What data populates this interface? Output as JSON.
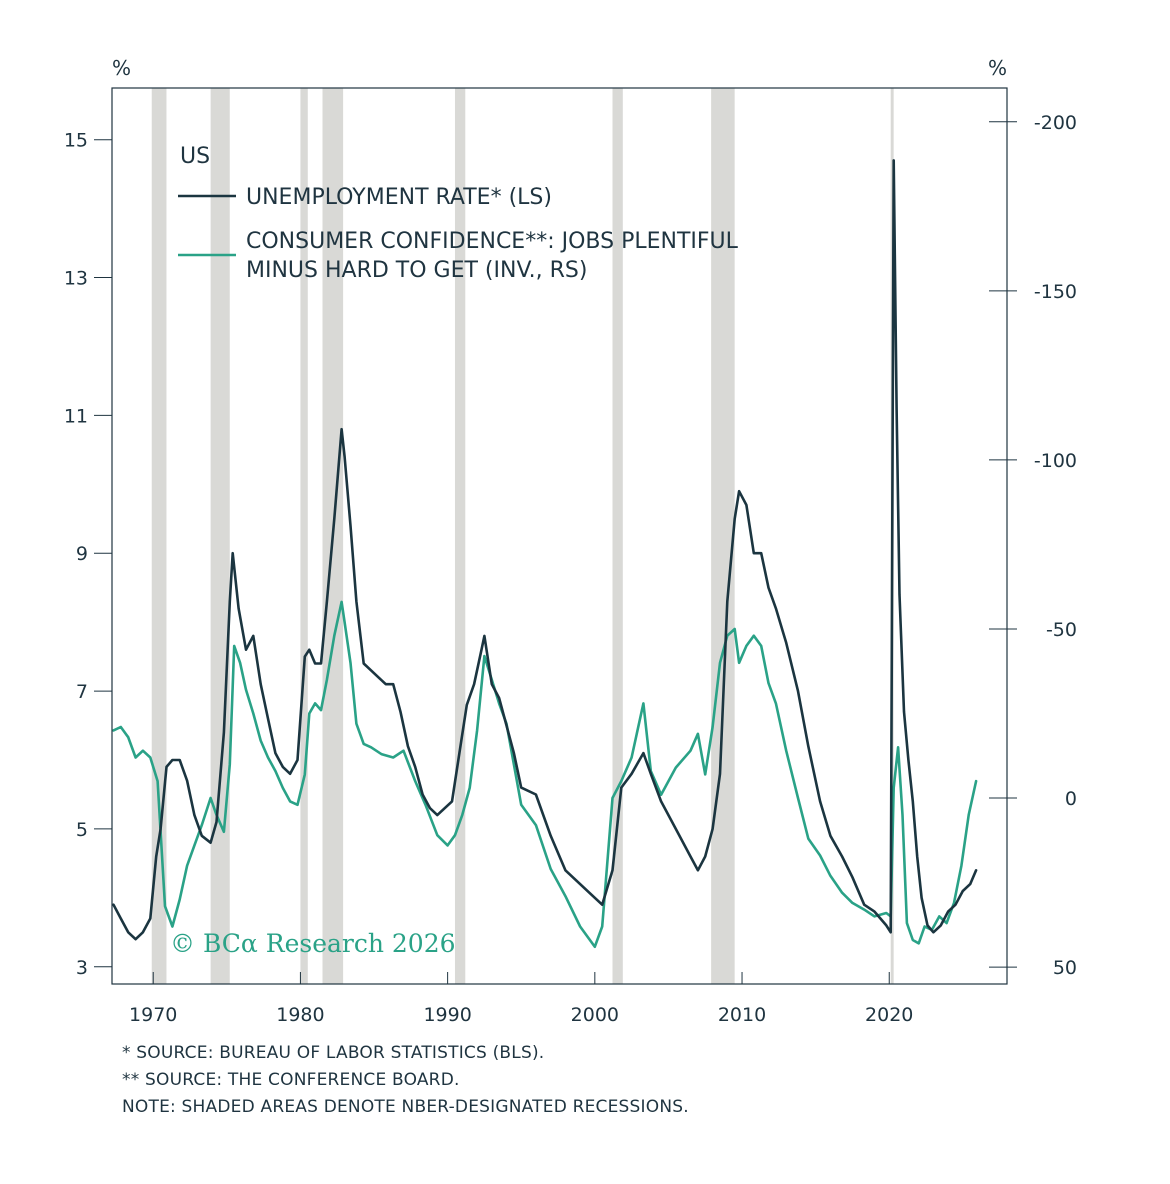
{
  "chart_data": {
    "type": "line",
    "title": "US",
    "left_axis": {
      "unit": "%",
      "ticks": [
        3,
        5,
        7,
        9,
        11,
        13,
        15
      ],
      "range": [
        2.75,
        15.75
      ]
    },
    "right_axis": {
      "unit": "%",
      "inverted": true,
      "ticks": [
        "-200",
        "-150",
        "-100",
        "-50",
        "0",
        "50"
      ],
      "tick_values": [
        -200,
        -150,
        -100,
        -50,
        0,
        50
      ],
      "range": [
        -210,
        55
      ]
    },
    "x_axis": {
      "ticks": [
        "1970",
        "1980",
        "1990",
        "2000",
        "2010",
        "2020"
      ],
      "tick_values": [
        1970,
        1980,
        1990,
        2000,
        2010,
        2020
      ],
      "range": [
        1967.2,
        2028
      ]
    },
    "legend": {
      "title": "US",
      "placement": "top-left"
    },
    "copyright": "© BCα Research 2026",
    "recessions": [
      [
        1969.9,
        1970.9
      ],
      [
        1973.9,
        1975.2
      ],
      [
        1980.0,
        1980.5
      ],
      [
        1981.5,
        1982.9
      ],
      [
        1990.5,
        1991.2
      ],
      [
        2001.2,
        2001.9
      ],
      [
        2007.9,
        2009.5
      ],
      [
        2020.1,
        2020.3
      ]
    ],
    "series": [
      {
        "name": "UNEMPLOYMENT RATE* (LS)",
        "axis": "left",
        "color": "#1b3540",
        "x": [
          1967.3,
          1967.8,
          1968.3,
          1968.8,
          1969.3,
          1969.8,
          1970.2,
          1970.5,
          1970.9,
          1971.3,
          1971.8,
          1972.3,
          1972.8,
          1973.3,
          1973.9,
          1974.3,
          1974.8,
          1975.2,
          1975.4,
          1975.8,
          1976.3,
          1976.8,
          1977.3,
          1977.8,
          1978.3,
          1978.8,
          1979.3,
          1979.8,
          1980.3,
          1980.6,
          1981.0,
          1981.4,
          1981.8,
          1982.3,
          1982.8,
          1983.0,
          1983.4,
          1983.8,
          1984.3,
          1984.8,
          1985.3,
          1985.8,
          1986.3,
          1986.8,
          1987.3,
          1987.8,
          1988.3,
          1988.8,
          1989.3,
          1989.8,
          1990.3,
          1990.8,
          1991.3,
          1991.8,
          1992.3,
          1992.5,
          1993.0,
          1993.5,
          1994.0,
          1994.5,
          1995.0,
          1996.0,
          1997.0,
          1998.0,
          1999.0,
          2000.0,
          2000.5,
          2001.2,
          2001.8,
          2002.5,
          2003.3,
          2003.8,
          2004.5,
          2005.5,
          2006.5,
          2007.0,
          2007.5,
          2008.0,
          2008.5,
          2009.0,
          2009.5,
          2009.8,
          2010.3,
          2010.8,
          2011.3,
          2011.8,
          2012.3,
          2013.0,
          2013.8,
          2014.5,
          2015.3,
          2016.0,
          2016.8,
          2017.5,
          2018.3,
          2019.0,
          2019.8,
          2020.1,
          2020.3,
          2020.5,
          2020.7,
          2021.0,
          2021.3,
          2021.6,
          2021.9,
          2022.2,
          2022.6,
          2023.0,
          2023.5,
          2024.0,
          2024.5,
          2025.0,
          2025.5,
          2025.9
        ],
        "values": [
          3.9,
          3.7,
          3.5,
          3.4,
          3.5,
          3.7,
          4.6,
          5.0,
          5.9,
          6.0,
          6.0,
          5.7,
          5.2,
          4.9,
          4.8,
          5.1,
          6.4,
          8.3,
          9.0,
          8.2,
          7.6,
          7.8,
          7.1,
          6.6,
          6.1,
          5.9,
          5.8,
          6.0,
          7.5,
          7.6,
          7.4,
          7.4,
          8.3,
          9.5,
          10.8,
          10.4,
          9.4,
          8.3,
          7.4,
          7.3,
          7.2,
          7.1,
          7.1,
          6.7,
          6.2,
          5.9,
          5.5,
          5.3,
          5.2,
          5.3,
          5.4,
          6.1,
          6.8,
          7.1,
          7.6,
          7.8,
          7.1,
          6.9,
          6.5,
          6.1,
          5.6,
          5.5,
          4.9,
          4.4,
          4.2,
          4.0,
          3.9,
          4.4,
          5.6,
          5.8,
          6.1,
          5.8,
          5.4,
          5.0,
          4.6,
          4.4,
          4.6,
          5.0,
          5.8,
          8.3,
          9.5,
          9.9,
          9.7,
          9.0,
          9.0,
          8.5,
          8.2,
          7.7,
          7.0,
          6.2,
          5.4,
          4.9,
          4.6,
          4.3,
          3.9,
          3.8,
          3.6,
          3.5,
          14.7,
          11.1,
          8.4,
          6.7,
          6.0,
          5.4,
          4.6,
          4.0,
          3.6,
          3.5,
          3.6,
          3.8,
          3.9,
          4.1,
          4.2,
          4.4
        ]
      },
      {
        "name": "CONSUMER CONFIDENCE**: JOBS PLENTIFUL MINUS HARD TO GET (INV., RS)",
        "axis": "right",
        "color": "#2aa287",
        "x": [
          1967.3,
          1967.8,
          1968.3,
          1968.8,
          1969.3,
          1969.8,
          1970.3,
          1970.8,
          1971.3,
          1971.8,
          1972.3,
          1972.8,
          1973.3,
          1973.9,
          1974.3,
          1974.8,
          1975.2,
          1975.5,
          1975.9,
          1976.3,
          1976.8,
          1977.3,
          1977.8,
          1978.3,
          1978.8,
          1979.3,
          1979.8,
          1980.3,
          1980.6,
          1981.0,
          1981.4,
          1981.8,
          1982.3,
          1982.8,
          1983.0,
          1983.4,
          1983.8,
          1984.3,
          1984.8,
          1985.5,
          1986.3,
          1987.0,
          1987.8,
          1988.5,
          1989.3,
          1990.0,
          1990.5,
          1991.0,
          1991.5,
          1992.0,
          1992.5,
          1993.0,
          1993.5,
          1994.0,
          1995.0,
          1996.0,
          1997.0,
          1998.0,
          1999.0,
          2000.0,
          2000.5,
          2001.2,
          2001.8,
          2002.5,
          2003.3,
          2003.8,
          2004.5,
          2005.5,
          2006.5,
          2007.0,
          2007.5,
          2008.0,
          2008.5,
          2009.0,
          2009.5,
          2009.8,
          2010.3,
          2010.8,
          2011.3,
          2011.8,
          2012.3,
          2013.0,
          2013.8,
          2014.5,
          2015.3,
          2016.0,
          2016.8,
          2017.5,
          2018.3,
          2019.0,
          2019.8,
          2020.1,
          2020.3,
          2020.6,
          2020.9,
          2021.2,
          2021.6,
          2022.0,
          2022.4,
          2022.9,
          2023.4,
          2023.9,
          2024.4,
          2024.9,
          2025.4,
          2025.9
        ],
        "values": [
          -20,
          -21,
          -18,
          -12,
          -14,
          -12,
          -5,
          32,
          38,
          30,
          20,
          14,
          8,
          0,
          5,
          10,
          -10,
          -45,
          -40,
          -32,
          -25,
          -17,
          -12,
          -8,
          -3,
          1,
          2,
          -7,
          -25,
          -28,
          -26,
          -35,
          -48,
          -58,
          -52,
          -40,
          -22,
          -16,
          -15,
          -13,
          -12,
          -14,
          -5,
          2,
          11,
          14,
          11,
          5,
          -3,
          -20,
          -42,
          -35,
          -28,
          -22,
          2,
          8,
          21,
          29,
          38,
          44,
          38,
          0,
          -5,
          -12,
          -28,
          -8,
          -1,
          -9,
          -14,
          -19,
          -7,
          -21,
          -40,
          -48,
          -50,
          -40,
          -45,
          -48,
          -45,
          -34,
          -28,
          -14,
          0,
          12,
          17,
          23,
          28,
          31,
          33,
          35,
          34,
          35,
          -3,
          -15,
          5,
          37,
          42,
          43,
          38,
          39,
          35,
          37,
          31,
          20,
          5,
          -5
        ]
      }
    ]
  },
  "notes": [
    "*  SOURCE: BUREAU OF LABOR STATISTICS (BLS).",
    "**  SOURCE: THE CONFERENCE BOARD.",
    "NOTE: SHADED AREAS DENOTE NBER-DESIGNATED RECESSIONS."
  ]
}
